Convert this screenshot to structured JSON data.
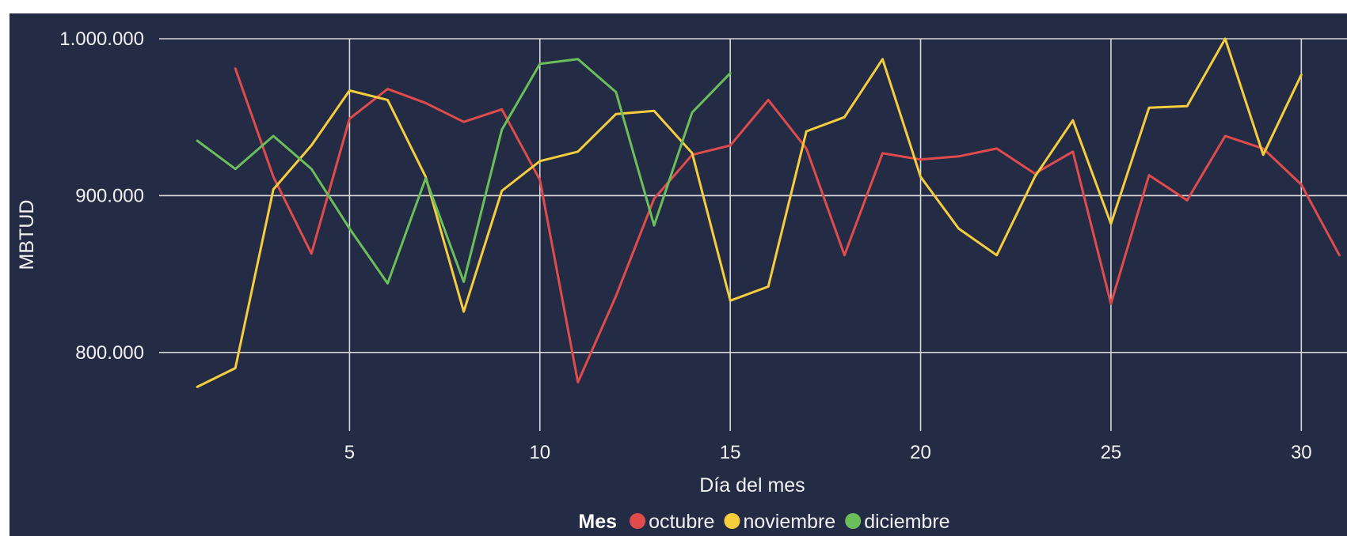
{
  "chart_data": {
    "type": "line",
    "xlabel": "Día del mes",
    "ylabel": "MBTUD",
    "xlim": [
      0.0,
      31.2
    ],
    "ylim": [
      750000,
      1000000
    ],
    "x_ticks": [
      5,
      10,
      15,
      20,
      25,
      30
    ],
    "x_tick_labels": [
      "5",
      "10",
      "15",
      "20",
      "25",
      "30"
    ],
    "y_ticks": [
      800000,
      900000,
      1000000
    ],
    "y_tick_labels": [
      "800.000",
      "900.000",
      "1.000.000"
    ],
    "grid": true,
    "legend": {
      "title": "Mes",
      "placement": "bottom-center"
    },
    "series": [
      {
        "name": "octubre",
        "color": "#e04b4b",
        "x": [
          2,
          3,
          4,
          5,
          6,
          7,
          8,
          9,
          10,
          11,
          12,
          13,
          14,
          15,
          16,
          17,
          18,
          19,
          20,
          21,
          22,
          23,
          24,
          25,
          26,
          27,
          28,
          29,
          30,
          31
        ],
        "values": [
          981000,
          912000,
          863000,
          949000,
          968000,
          959000,
          947000,
          955000,
          910000,
          781000,
          836000,
          898000,
          926000,
          932000,
          961000,
          930000,
          862000,
          927000,
          923000,
          925000,
          930000,
          914000,
          928000,
          831000,
          913000,
          897000,
          938000,
          930000,
          907000,
          862000
        ]
      },
      {
        "name": "noviembre",
        "color": "#f5cd3d",
        "x": [
          1,
          2,
          3,
          4,
          5,
          6,
          7,
          8,
          9,
          10,
          11,
          12,
          13,
          14,
          15,
          16,
          17,
          18,
          19,
          20,
          21,
          22,
          23,
          24,
          25,
          26,
          27,
          28,
          29,
          30
        ],
        "values": [
          778000,
          790000,
          904000,
          932000,
          967000,
          961000,
          912000,
          826000,
          903000,
          922000,
          928000,
          952000,
          954000,
          927000,
          833000,
          842000,
          941000,
          950000,
          987000,
          912000,
          879000,
          862000,
          912000,
          948000,
          882000,
          956000,
          957000,
          1000000,
          926000,
          977000
        ]
      },
      {
        "name": "diciembre",
        "color": "#6bbf5a",
        "x": [
          1,
          2,
          3,
          4,
          5,
          6,
          7,
          8,
          9,
          10,
          11,
          12,
          13,
          14,
          15
        ],
        "values": [
          935000,
          917000,
          938000,
          917000,
          879000,
          844000,
          911000,
          845000,
          942000,
          984000,
          987000,
          966000,
          881000,
          953000,
          978000
        ]
      }
    ]
  }
}
